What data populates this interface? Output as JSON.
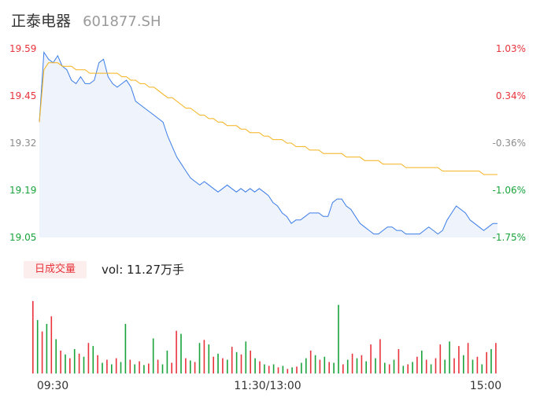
{
  "header": {
    "name": "正泰电器",
    "code": "601877.SH"
  },
  "volume": {
    "tab_label": "日成交量",
    "summary": "vol: 11.27万手"
  },
  "colors": {
    "up": "#e8333b",
    "down": "#19a33a",
    "price_line": "#3b7de8",
    "avg_line": "#f5b21d",
    "neutral": "#8c8c8c"
  },
  "chart_data": {
    "type": "line",
    "y_left_ticks": [
      "19.59",
      "19.45",
      "19.32",
      "19.19",
      "19.05"
    ],
    "y_right_ticks": [
      "1.03%",
      "0.34%",
      "-0.36%",
      "-1.06%",
      "-1.75%"
    ],
    "x_ticks": [
      "09:30",
      "11:30/13:00",
      "15:00"
    ],
    "ylim": [
      19.05,
      19.59
    ],
    "price": [
      19.38,
      19.58,
      19.56,
      19.55,
      19.57,
      19.54,
      19.53,
      19.5,
      19.49,
      19.51,
      19.49,
      19.49,
      19.5,
      19.55,
      19.56,
      19.51,
      19.49,
      19.48,
      19.49,
      19.5,
      19.48,
      19.44,
      19.43,
      19.42,
      19.41,
      19.4,
      19.39,
      19.38,
      19.34,
      19.31,
      19.28,
      19.26,
      19.24,
      19.22,
      19.21,
      19.2,
      19.21,
      19.2,
      19.19,
      19.18,
      19.19,
      19.2,
      19.19,
      19.18,
      19.19,
      19.18,
      19.19,
      19.18,
      19.19,
      19.18,
      19.17,
      19.15,
      19.14,
      19.12,
      19.11,
      19.09,
      19.1,
      19.1,
      19.11,
      19.12,
      19.12,
      19.12,
      19.11,
      19.11,
      19.15,
      19.16,
      19.16,
      19.14,
      19.13,
      19.11,
      19.09,
      19.08,
      19.07,
      19.06,
      19.06,
      19.07,
      19.08,
      19.08,
      19.07,
      19.07,
      19.06,
      19.06,
      19.06,
      19.06,
      19.07,
      19.08,
      19.07,
      19.06,
      19.07,
      19.1,
      19.12,
      19.14,
      19.13,
      19.12,
      19.1,
      19.09,
      19.08,
      19.07,
      19.08,
      19.09,
      19.09
    ],
    "avg_price": [
      19.38,
      19.53,
      19.55,
      19.55,
      19.55,
      19.54,
      19.54,
      19.54,
      19.53,
      19.53,
      19.53,
      19.52,
      19.52,
      19.52,
      19.52,
      19.52,
      19.52,
      19.52,
      19.51,
      19.51,
      19.5,
      19.5,
      19.49,
      19.49,
      19.48,
      19.48,
      19.47,
      19.46,
      19.45,
      19.45,
      19.44,
      19.43,
      19.42,
      19.42,
      19.41,
      19.4,
      19.4,
      19.39,
      19.39,
      19.38,
      19.38,
      19.37,
      19.37,
      19.37,
      19.36,
      19.36,
      19.35,
      19.35,
      19.35,
      19.34,
      19.34,
      19.33,
      19.33,
      19.33,
      19.32,
      19.32,
      19.31,
      19.31,
      19.31,
      19.3,
      19.3,
      19.3,
      19.29,
      19.29,
      19.29,
      19.29,
      19.29,
      19.28,
      19.28,
      19.28,
      19.28,
      19.27,
      19.27,
      19.27,
      19.27,
      19.26,
      19.26,
      19.26,
      19.26,
      19.26,
      19.25,
      19.25,
      19.25,
      19.25,
      19.25,
      19.25,
      19.25,
      19.25,
      19.24,
      19.24,
      19.24,
      19.24,
      19.24,
      19.24,
      19.24,
      19.24,
      19.24,
      19.23,
      19.23,
      19.23,
      19.23
    ],
    "volume_bars": [
      {
        "h": 0.95,
        "c": "up"
      },
      {
        "h": 0.7,
        "c": "down"
      },
      {
        "h": 0.55,
        "c": "up"
      },
      {
        "h": 0.65,
        "c": "down"
      },
      {
        "h": 0.75,
        "c": "up"
      },
      {
        "h": 0.45,
        "c": "down"
      },
      {
        "h": 0.3,
        "c": "up"
      },
      {
        "h": 0.25,
        "c": "down"
      },
      {
        "h": 0.2,
        "c": "up"
      },
      {
        "h": 0.32,
        "c": "down"
      },
      {
        "h": 0.26,
        "c": "up"
      },
      {
        "h": 0.22,
        "c": "down"
      },
      {
        "h": 0.4,
        "c": "up"
      },
      {
        "h": 0.36,
        "c": "down"
      },
      {
        "h": 0.24,
        "c": "up"
      },
      {
        "h": 0.14,
        "c": "down"
      },
      {
        "h": 0.18,
        "c": "up"
      },
      {
        "h": 0.12,
        "c": "down"
      },
      {
        "h": 0.2,
        "c": "up"
      },
      {
        "h": 0.15,
        "c": "down"
      },
      {
        "h": 0.65,
        "c": "down"
      },
      {
        "h": 0.18,
        "c": "up"
      },
      {
        "h": 0.12,
        "c": "down"
      },
      {
        "h": 0.16,
        "c": "up"
      },
      {
        "h": 0.11,
        "c": "down"
      },
      {
        "h": 0.13,
        "c": "up"
      },
      {
        "h": 0.46,
        "c": "down"
      },
      {
        "h": 0.18,
        "c": "up"
      },
      {
        "h": 0.12,
        "c": "down"
      },
      {
        "h": 0.3,
        "c": "down"
      },
      {
        "h": 0.14,
        "c": "up"
      },
      {
        "h": 0.56,
        "c": "up"
      },
      {
        "h": 0.52,
        "c": "down"
      },
      {
        "h": 0.2,
        "c": "up"
      },
      {
        "h": 0.17,
        "c": "down"
      },
      {
        "h": 0.15,
        "c": "up"
      },
      {
        "h": 0.4,
        "c": "down"
      },
      {
        "h": 0.44,
        "c": "up"
      },
      {
        "h": 0.38,
        "c": "down"
      },
      {
        "h": 0.22,
        "c": "up"
      },
      {
        "h": 0.26,
        "c": "down"
      },
      {
        "h": 0.2,
        "c": "up"
      },
      {
        "h": 0.18,
        "c": "down"
      },
      {
        "h": 0.35,
        "c": "up"
      },
      {
        "h": 0.28,
        "c": "down"
      },
      {
        "h": 0.25,
        "c": "up"
      },
      {
        "h": 0.42,
        "c": "down"
      },
      {
        "h": 0.3,
        "c": "up"
      },
      {
        "h": 0.2,
        "c": "down"
      },
      {
        "h": 0.16,
        "c": "up"
      },
      {
        "h": 0.12,
        "c": "down"
      },
      {
        "h": 0.1,
        "c": "up"
      },
      {
        "h": 0.12,
        "c": "down"
      },
      {
        "h": 0.08,
        "c": "up"
      },
      {
        "h": 0.1,
        "c": "down"
      },
      {
        "h": 0.06,
        "c": "up"
      },
      {
        "h": 0.08,
        "c": "down"
      },
      {
        "h": 0.09,
        "c": "up"
      },
      {
        "h": 0.14,
        "c": "down"
      },
      {
        "h": 0.2,
        "c": "down"
      },
      {
        "h": 0.3,
        "c": "up"
      },
      {
        "h": 0.24,
        "c": "down"
      },
      {
        "h": 0.18,
        "c": "up"
      },
      {
        "h": 0.22,
        "c": "down"
      },
      {
        "h": 0.15,
        "c": "up"
      },
      {
        "h": 0.14,
        "c": "down"
      },
      {
        "h": 0.9,
        "c": "down"
      },
      {
        "h": 0.12,
        "c": "up"
      },
      {
        "h": 0.18,
        "c": "down"
      },
      {
        "h": 0.26,
        "c": "up"
      },
      {
        "h": 0.2,
        "c": "down"
      },
      {
        "h": 0.24,
        "c": "up"
      },
      {
        "h": 0.16,
        "c": "down"
      },
      {
        "h": 0.38,
        "c": "up"
      },
      {
        "h": 0.2,
        "c": "down"
      },
      {
        "h": 0.45,
        "c": "up"
      },
      {
        "h": 0.14,
        "c": "down"
      },
      {
        "h": 0.12,
        "c": "up"
      },
      {
        "h": 0.18,
        "c": "down"
      },
      {
        "h": 0.32,
        "c": "up"
      },
      {
        "h": 0.1,
        "c": "down"
      },
      {
        "h": 0.12,
        "c": "up"
      },
      {
        "h": 0.15,
        "c": "down"
      },
      {
        "h": 0.22,
        "c": "up"
      },
      {
        "h": 0.3,
        "c": "down"
      },
      {
        "h": 0.18,
        "c": "up"
      },
      {
        "h": 0.12,
        "c": "down"
      },
      {
        "h": 0.2,
        "c": "up"
      },
      {
        "h": 0.38,
        "c": "up"
      },
      {
        "h": 0.18,
        "c": "down"
      },
      {
        "h": 0.42,
        "c": "down"
      },
      {
        "h": 0.2,
        "c": "up"
      },
      {
        "h": 0.36,
        "c": "up"
      },
      {
        "h": 0.24,
        "c": "down"
      },
      {
        "h": 0.4,
        "c": "up"
      },
      {
        "h": 0.18,
        "c": "down"
      },
      {
        "h": 0.22,
        "c": "up"
      },
      {
        "h": 0.12,
        "c": "down"
      },
      {
        "h": 0.28,
        "c": "up"
      },
      {
        "h": 0.32,
        "c": "down"
      },
      {
        "h": 0.4,
        "c": "up"
      }
    ]
  }
}
